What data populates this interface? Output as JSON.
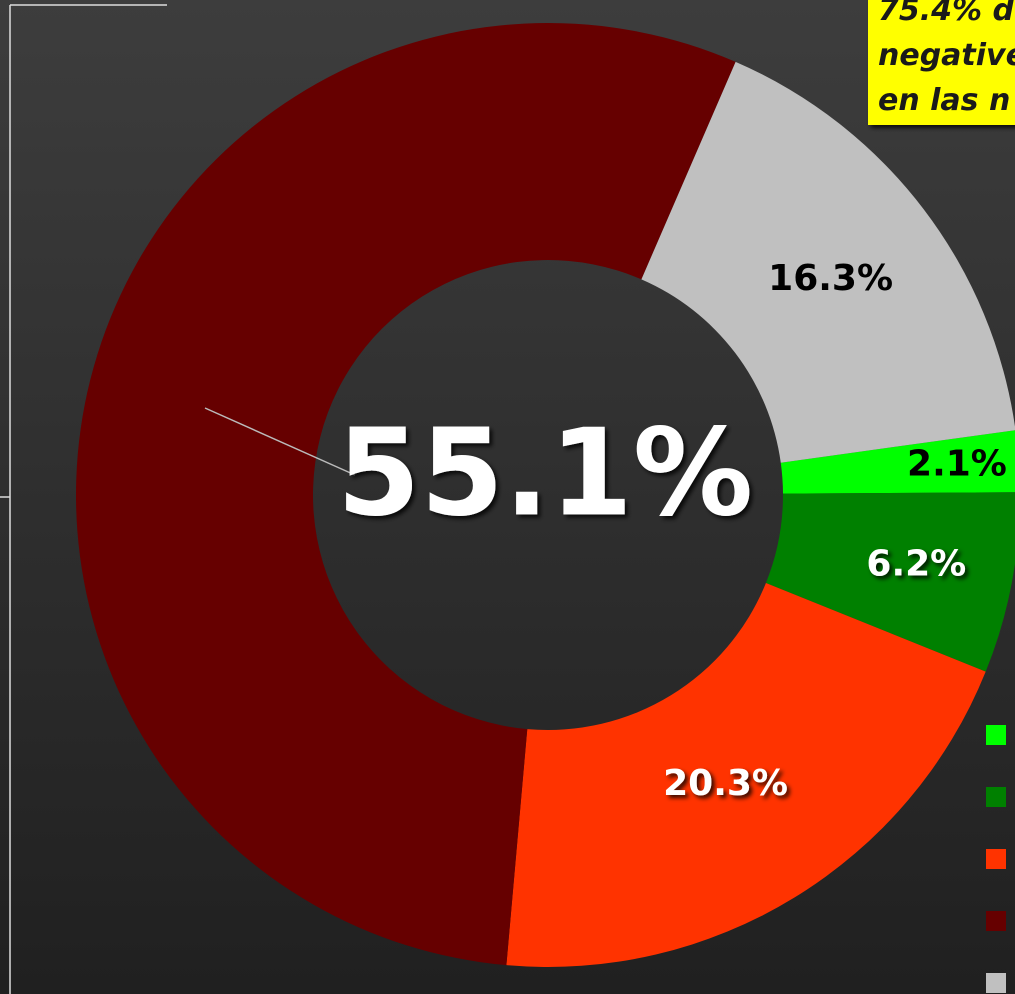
{
  "chart_data": {
    "type": "donut",
    "annotation": [
      "75.4% d",
      "negative",
      "en las n"
    ],
    "series": [
      {
        "name": null,
        "color": "#00ff00",
        "values": [
          2.1
        ],
        "value_labels": [
          "2.1%"
        ]
      },
      {
        "name": null,
        "color": "#008000",
        "values": [
          6.2
        ],
        "value_labels": [
          "6.2%"
        ]
      },
      {
        "name": null,
        "color": "#ff3300",
        "values": [
          20.3
        ],
        "value_labels": [
          "20.3%"
        ]
      },
      {
        "name": null,
        "color": "#660000",
        "values": [
          55.1
        ],
        "value_labels": [
          "55.1%"
        ]
      },
      {
        "name": null,
        "color": "#c0c0c0",
        "values": [
          16.3
        ],
        "value_labels": [
          "16.3%"
        ]
      }
    ],
    "legend": "right"
  }
}
